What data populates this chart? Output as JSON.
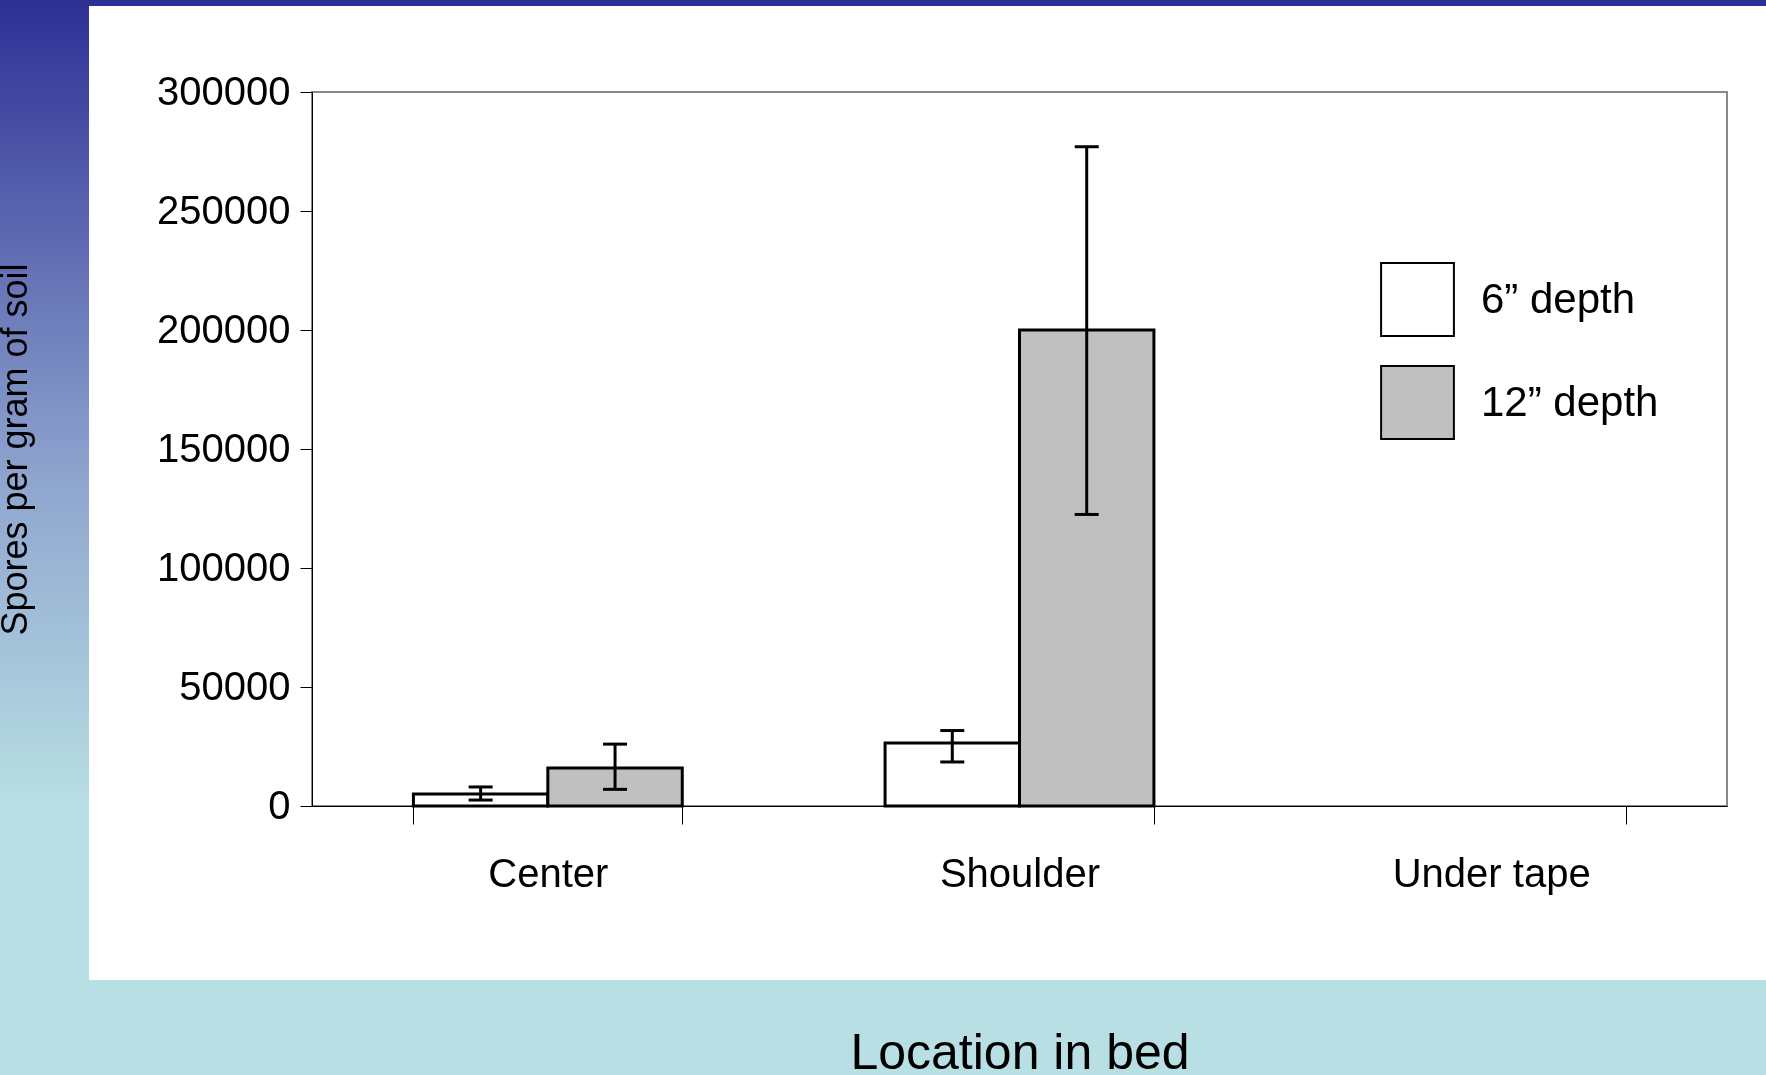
{
  "chart_data": {
    "type": "bar",
    "xlabel": "Location in bed",
    "ylabel": "Spores per gram of soil",
    "categories": [
      "Center",
      "Shoulder",
      "Under tape"
    ],
    "series": [
      {
        "name": "6” depth",
        "color": "#ffffff",
        "values": [
          5000,
          26500,
          null
        ],
        "errors": [
          [
            2500,
            8000
          ],
          [
            18500,
            31700
          ],
          null
        ]
      },
      {
        "name": "12” depth",
        "color": "#c0c0c0",
        "values": [
          16000,
          200000,
          null
        ],
        "errors": [
          [
            7000,
            26000
          ],
          [
            122500,
            277000
          ],
          null
        ]
      }
    ],
    "ylim": [
      0,
      300000
    ],
    "yticks": [
      0,
      50000,
      100000,
      150000,
      200000,
      250000,
      300000
    ],
    "grid": false,
    "legend": "top right"
  }
}
